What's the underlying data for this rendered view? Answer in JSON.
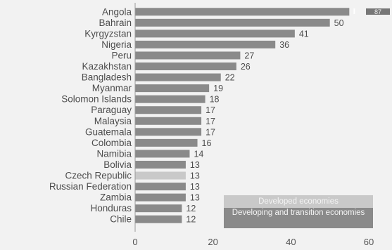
{
  "chart_data": {
    "type": "bar",
    "orientation": "horizontal",
    "categories": [
      "Angola",
      "Bahrain",
      "Kyrgyzstan",
      "Nigeria",
      "Peru",
      "Kazakhstan",
      "Bangladesh",
      "Myanmar",
      "Solomon Islands",
      "Paraguay",
      "Malaysia",
      "Guatemala",
      "Colombia",
      "Namibia",
      "Bolivia",
      "Czech Republic",
      "Russian Federation",
      "Zambia",
      "Honduras",
      "Chile"
    ],
    "values": [
      55,
      50,
      41,
      36,
      27,
      26,
      22,
      19,
      18,
      17,
      17,
      17,
      16,
      14,
      13,
      13,
      13,
      13,
      12,
      12
    ],
    "labels": [
      "",
      "50",
      "41",
      "36",
      "27",
      "26",
      "22",
      "19",
      "18",
      "17",
      "17",
      "17",
      "16",
      "14",
      "13",
      "13",
      "13",
      "13",
      "12",
      "12"
    ],
    "groups": [
      "developing",
      "developing",
      "developing",
      "developing",
      "developing",
      "developing",
      "developing",
      "developing",
      "developing",
      "developing",
      "developing",
      "developing",
      "developing",
      "developing",
      "developing",
      "developed",
      "developing",
      "developing",
      "developing",
      "developing"
    ],
    "xlim": [
      0,
      60
    ],
    "xticks": [
      "0",
      "20",
      "40",
      "60"
    ],
    "grid": false,
    "legend": {
      "placement": "bottom-right",
      "entries": [
        {
          "label": "Developed economies",
          "color": "#c9c9c9"
        },
        {
          "label": "Developing and transition economies",
          "color": "#8a8a8a"
        }
      ]
    },
    "corner_label": "87"
  }
}
